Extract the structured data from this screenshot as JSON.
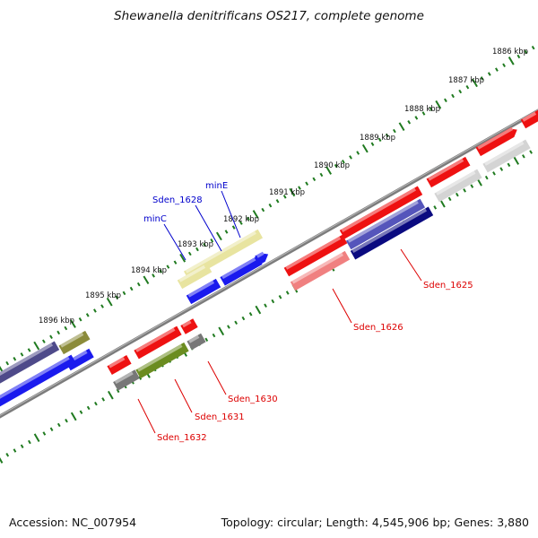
{
  "title": "Shewanella denitrificans OS217, complete genome",
  "accession": "Accession: NC_007954",
  "topology": "Topology: circular; Length: 4,545,906 bp; Genes: 3,880",
  "colors": {
    "backbone": "#7c7c7c",
    "tick": "#1f7a1f",
    "label_blue": "#0000cc",
    "label_red": "#dd0000"
  },
  "kbp_labels": [
    "1886 kbp",
    "1887 kbp",
    "1888 kbp",
    "1889 kbp",
    "1890 kbp",
    "1891 kbp",
    "1892 kbp",
    "1893 kbp",
    "1894 kbp",
    "1895 kbp",
    "1896 kbp"
  ],
  "gene_labels": [
    {
      "text": "minE",
      "color": "#0000cc"
    },
    {
      "text": "Sden_1628",
      "color": "#0000cc"
    },
    {
      "text": "minC",
      "color": "#0000cc"
    },
    {
      "text": "Sden_1625",
      "color": "#dd0000"
    },
    {
      "text": "Sden_1626",
      "color": "#dd0000"
    },
    {
      "text": "Sden_1630",
      "color": "#dd0000"
    },
    {
      "text": "Sden_1631",
      "color": "#dd0000"
    },
    {
      "text": "Sden_1632",
      "color": "#dd0000"
    }
  ],
  "gene_colors": [
    "#ee1111",
    "#d4d4d4",
    "#f08080",
    "#5555bb",
    "#0a0a80",
    "#e8e4a0",
    "#1a1aee",
    "#8b8b3a",
    "#4e4a8a",
    "#6b8c20",
    "#777777"
  ]
}
